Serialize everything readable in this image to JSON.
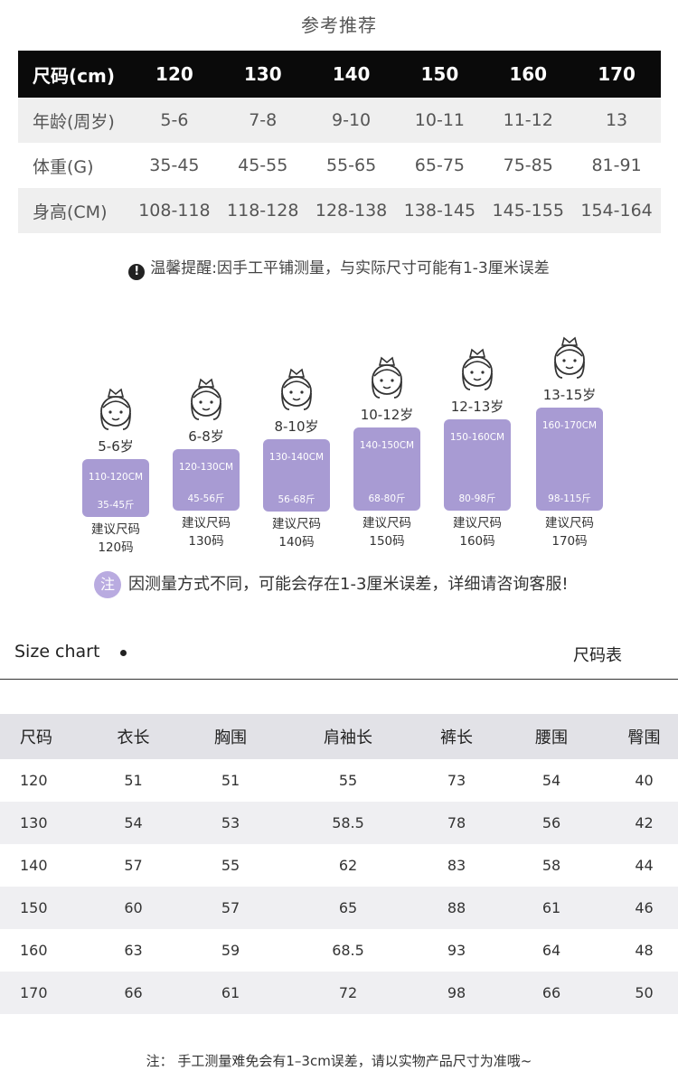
{
  "reference": {
    "title": "参考推荐",
    "header": [
      "尺码(cm)",
      "120",
      "130",
      "140",
      "150",
      "160",
      "170"
    ],
    "rows": [
      [
        "年龄(周岁)",
        "5-6",
        "7-8",
        "9-10",
        "10-11",
        "11-12",
        "13"
      ],
      [
        "体重(G)",
        "35-45",
        "45-55",
        "55-65",
        "65-75",
        "75-85",
        "81-91"
      ],
      [
        "身高(CM)",
        "108-118",
        "118-128",
        "128-138",
        "138-145",
        "145-155",
        "154-164"
      ]
    ],
    "tip": "温馨提醒:因手工平铺测量，与实际尺寸可能有1-3厘米误差"
  },
  "cards": [
    {
      "age": "5-6岁",
      "cm": "110-120CM",
      "kg": "35-45斤",
      "rec": "建议尺码",
      "size": "120码"
    },
    {
      "age": "6-8岁",
      "cm": "120-130CM",
      "kg": "45-56斤",
      "rec": "建议尺码",
      "size": "130码"
    },
    {
      "age": "8-10岁",
      "cm": "130-140CM",
      "kg": "56-68斤",
      "rec": "建议尺码",
      "size": "140码"
    },
    {
      "age": "10-12岁",
      "cm": "140-150CM",
      "kg": "68-80斤",
      "rec": "建议尺码",
      "size": "150码"
    },
    {
      "age": "12-13岁",
      "cm": "150-160CM",
      "kg": "80-98斤",
      "rec": "建议尺码",
      "size": "160码"
    },
    {
      "age": "13-15岁",
      "cm": "160-170CM",
      "kg": "98-115斤",
      "rec": "建议尺码",
      "size": "170码"
    }
  ],
  "note": {
    "badge": "注",
    "text": "因测量方式不同，可能会存在1-3厘米误差，详细请咨询客服!"
  },
  "size_chart": {
    "title_en": "Size chart",
    "title_cn": "尺码表",
    "header": [
      "尺码",
      "衣长",
      "胸围",
      "肩袖长",
      "裤长",
      "腰围",
      "臀围"
    ],
    "rows": [
      [
        "120",
        "51",
        "51",
        "55",
        "73",
        "54",
        "40"
      ],
      [
        "130",
        "54",
        "53",
        "58.5",
        "78",
        "56",
        "42"
      ],
      [
        "140",
        "57",
        "55",
        "62",
        "83",
        "58",
        "44"
      ],
      [
        "150",
        "60",
        "57",
        "65",
        "88",
        "61",
        "46"
      ],
      [
        "160",
        "63",
        "59",
        "68.5",
        "93",
        "64",
        "48"
      ],
      [
        "170",
        "66",
        "61",
        "72",
        "98",
        "66",
        "50"
      ]
    ]
  },
  "footer": "注： 手工测量难免会有1–3cm误差，请以实物产品尺寸为准哦~",
  "colors": {
    "accent": "#a89bd3",
    "header_black": "#0a0a0a"
  },
  "icons": [
    "princess-face-icon",
    "exclamation-icon"
  ]
}
